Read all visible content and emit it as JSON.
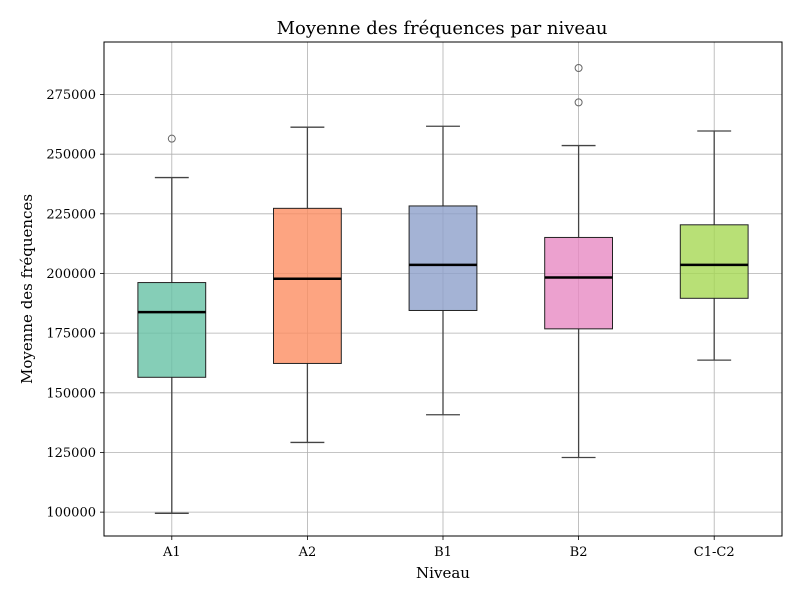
{
  "chart_data": {
    "type": "boxplot",
    "title": "Moyenne des fréquences par niveau",
    "xlabel": "Niveau",
    "ylabel": "Moyenne des fréquences",
    "ylim": [
      90000,
      297000
    ],
    "yticks": [
      100000,
      125000,
      150000,
      175000,
      200000,
      225000,
      250000,
      275000
    ],
    "ytick_labels": [
      "100000",
      "125000",
      "150000",
      "175000",
      "200000",
      "225000",
      "250000",
      "275000"
    ],
    "grid": true,
    "categories": [
      "A1",
      "A2",
      "B1",
      "B2",
      "C1-C2"
    ],
    "boxes": [
      {
        "name": "A1",
        "color": "#66c2a5",
        "whislo": 99500,
        "q1": 156500,
        "median": 183800,
        "q3": 196200,
        "whishi": 240200,
        "fliers": [
          256500
        ]
      },
      {
        "name": "A2",
        "color": "#fc8d62",
        "whislo": 129200,
        "q1": 162300,
        "median": 197800,
        "q3": 227300,
        "whishi": 261300,
        "fliers": []
      },
      {
        "name": "B1",
        "color": "#8da0cb",
        "whislo": 140800,
        "q1": 184500,
        "median": 203600,
        "q3": 228300,
        "whishi": 261700,
        "fliers": []
      },
      {
        "name": "B2",
        "color": "#e78ac3",
        "whislo": 122900,
        "q1": 176800,
        "median": 198300,
        "q3": 215100,
        "whishi": 253600,
        "fliers": [
          271700,
          286100
        ]
      },
      {
        "name": "C1-C2",
        "color": "#a6d854",
        "whislo": 163700,
        "q1": 189600,
        "median": 203600,
        "q3": 220400,
        "whishi": 259700,
        "fliers": []
      }
    ]
  }
}
